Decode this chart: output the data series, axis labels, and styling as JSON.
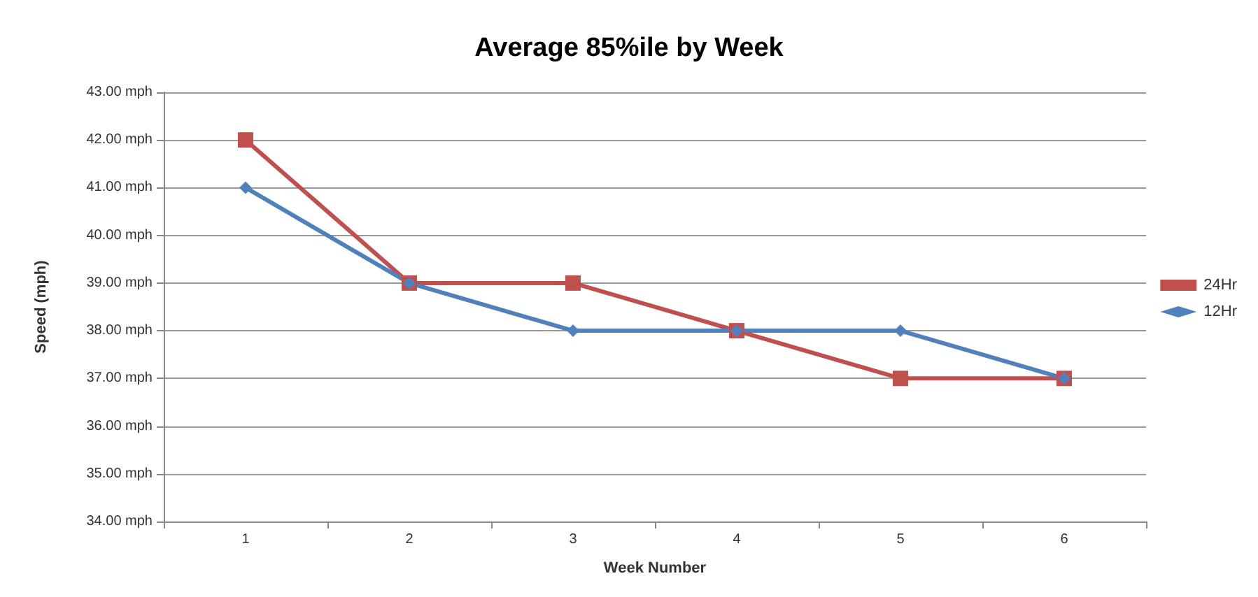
{
  "chart_data": {
    "type": "line",
    "title": "Average 85%ile by Week",
    "xlabel": "Week Number",
    "ylabel": "Speed (mph)",
    "categories": [
      "1",
      "2",
      "3",
      "4",
      "5",
      "6"
    ],
    "series": [
      {
        "name": "24Hr",
        "color": "#c0504d",
        "marker": "square",
        "values": [
          42,
          39,
          39,
          38,
          37,
          37
        ]
      },
      {
        "name": "12Hr",
        "color": "#4f81bd",
        "marker": "diamond",
        "values": [
          41,
          39,
          38,
          38,
          38,
          37
        ]
      }
    ],
    "ylim": [
      34,
      43
    ],
    "yticks": [
      {
        "value": 34,
        "label": "34.00 mph"
      },
      {
        "value": 35,
        "label": "35.00 mph"
      },
      {
        "value": 36,
        "label": "36.00 mph"
      },
      {
        "value": 37,
        "label": "37.00 mph"
      },
      {
        "value": 38,
        "label": "38.00 mph"
      },
      {
        "value": 39,
        "label": "39.00 mph"
      },
      {
        "value": 40,
        "label": "40.00 mph"
      },
      {
        "value": 41,
        "label": "41.00 mph"
      },
      {
        "value": 42,
        "label": "42.00 mph"
      },
      {
        "value": 43,
        "label": "43.00 mph"
      }
    ],
    "grid": "y",
    "legend": "right",
    "line_style": "solid"
  }
}
